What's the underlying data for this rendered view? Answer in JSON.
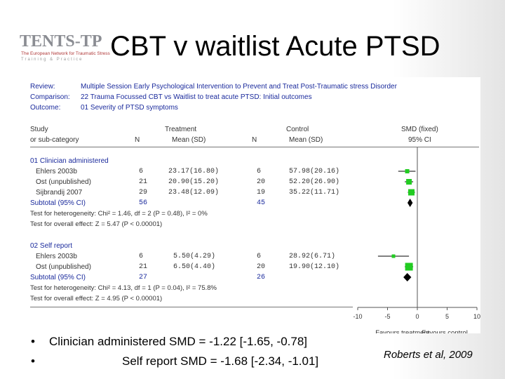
{
  "title": "CBT v waitlist Acute PTSD",
  "logo": {
    "name": "TENTS-TP",
    "subtitle": "The European Network for Traumatic Stress",
    "tagline": "Training & Practice"
  },
  "review": {
    "labels": {
      "review": "Review:",
      "comparison": "Comparison:",
      "outcome": "Outcome:"
    },
    "review": "Multiple Session Early Psychological Intervention to Prevent and Treat Post-Traumatic stress Disorder",
    "comparison": "22 Trauma Focussed CBT vs Waitlist to treat acute PTSD: Initial outcomes",
    "outcome": "01 Severity of PTSD symptoms"
  },
  "columns": {
    "study": "Study",
    "study_sub": "or sub-category",
    "treatment": "Treatment",
    "control": "Control",
    "n": "N",
    "mean_sd": "Mean (SD)",
    "smd": "SMD (fixed)",
    "ci": "95% CI"
  },
  "groups": [
    {
      "label": "01 Clinician administered",
      "studies": [
        {
          "name": "Ehlers 2003b",
          "tn": "6",
          "tmean": "23.17(16.80)",
          "cn": "6",
          "cmean": "57.98(20.16)",
          "smd": -1.7,
          "lo": -3.2,
          "hi": -0.3,
          "w": 6
        },
        {
          "name": "Ost (unpublished)",
          "tn": "21",
          "tmean": "20.90(15.20)",
          "cn": "20",
          "cmean": "52.20(26.90)",
          "smd": -1.4,
          "lo": -2.1,
          "hi": -0.7,
          "w": 8
        },
        {
          "name": "Sijbrandij 2007",
          "tn": "29",
          "tmean": "23.48(12.09)",
          "cn": "19",
          "cmean": "35.22(11.71)",
          "smd": -1.0,
          "lo": -1.6,
          "hi": -0.4,
          "w": 9
        }
      ],
      "subtotal": {
        "label": "Subtotal (95% CI)",
        "tn": "56",
        "cn": "45",
        "smd": -1.22,
        "lo": -1.65,
        "hi": -0.78
      },
      "heterogeneity": "Test for heterogeneity: Chi² = 1.46, df = 2 (P = 0.48), I² = 0%",
      "overall": "Test for overall effect: Z = 5.47 (P < 0.00001)"
    },
    {
      "label": "02 Self report",
      "studies": [
        {
          "name": "Ehlers 2003b",
          "tn": "6",
          "tmean": "5.50(4.29)",
          "cn": "6",
          "cmean": "28.92(6.71)",
          "smd": -4.0,
          "lo": -6.6,
          "hi": -1.4,
          "w": 5
        },
        {
          "name": "Ost (unpublished)",
          "tn": "21",
          "tmean": "6.50(4.40)",
          "cn": "20",
          "cmean": "19.90(12.10)",
          "smd": -1.4,
          "lo": -2.1,
          "hi": -0.7,
          "w": 11
        }
      ],
      "subtotal": {
        "label": "Subtotal (95% CI)",
        "tn": "27",
        "cn": "26",
        "smd": -1.68,
        "lo": -2.34,
        "hi": -1.01
      },
      "heterogeneity": "Test for heterogeneity: Chi² = 4.13, df = 1 (P = 0.04), I² = 75.8%",
      "overall": "Test for overall effect: Z = 4.95 (P < 0.00001)"
    }
  ],
  "chart_data": {
    "type": "scatter",
    "subtype": "forest_plot",
    "x_ticks": [
      -10,
      -5,
      0,
      5,
      10
    ],
    "x_tick_labels": [
      "-10",
      "-5",
      "0",
      "5",
      "10"
    ],
    "xlim": [
      -10,
      10
    ],
    "favours_left": "Favours treatment",
    "favours_right": "Favours control"
  },
  "bullets": [
    {
      "marker": "•",
      "text": "Clinician administered SMD = -1.22 [-1.65, -0.78]"
    },
    {
      "marker": "•",
      "text": "Self report SMD = -1.68 [-2.34, -1.01]"
    }
  ],
  "citation": "Roberts et al, 2009",
  "colors": {
    "marker": "#22cc22",
    "diamond": "#000000",
    "link_blue": "#1a2a9c"
  }
}
